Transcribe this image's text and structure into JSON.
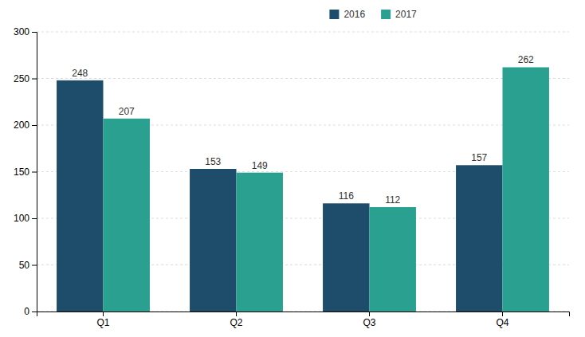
{
  "chart_data": {
    "type": "bar",
    "categories": [
      "Q1",
      "Q2",
      "Q3",
      "Q4"
    ],
    "series": [
      {
        "name": "2016",
        "color": "#1e4d6b",
        "values": [
          248,
          153,
          116,
          157
        ]
      },
      {
        "name": "2017",
        "color": "#2aa090",
        "values": [
          207,
          149,
          112,
          262
        ]
      }
    ],
    "ylim": [
      0,
      300
    ],
    "yticks": [
      0,
      50,
      100,
      150,
      200,
      250,
      300
    ],
    "grid": true,
    "legend": "top",
    "data_labels": true
  }
}
